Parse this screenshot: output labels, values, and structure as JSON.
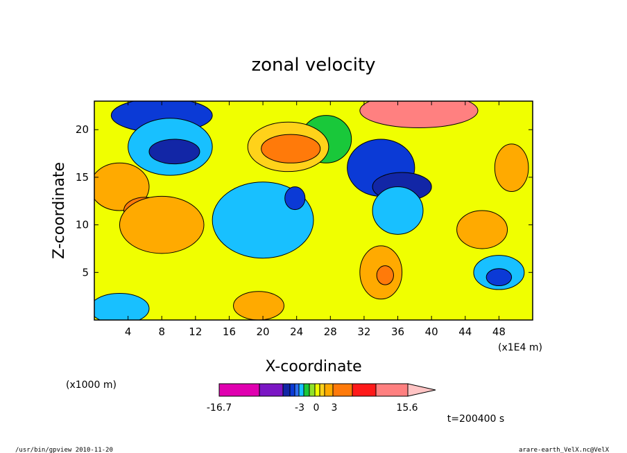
{
  "chart_data": {
    "type": "heatmap",
    "title": "zonal velocity",
    "xlabel": "X-coordinate",
    "ylabel": "Z-coordinate",
    "x_unit_left": "(x1000 m)",
    "x_unit_right": "(x1E4 m)",
    "xlim": [
      0,
      52
    ],
    "ylim": [
      0,
      23
    ],
    "x_ticks": [
      4,
      8,
      12,
      16,
      20,
      24,
      28,
      32,
      36,
      40,
      44,
      48
    ],
    "y_ticks": [
      5,
      10,
      15,
      20
    ],
    "colorbar": {
      "colors": [
        "#e000b0",
        "#7b16c4",
        "#1226a6",
        "#0b3ad6",
        "#2f6ff5",
        "#18c0ff",
        "#19c83a",
        "#8fe22a",
        "#f0ff00",
        "#ffd21a",
        "#ffaa00",
        "#ff7a0a",
        "#ff1a1a",
        "#ff8080",
        "#ffc4c4"
      ],
      "label_min": "-16.7",
      "label_neg": "-3",
      "label_zero": "0",
      "label_pos": "3",
      "label_max": "15.6",
      "min": -16.7,
      "max": 15.6
    },
    "regions": [
      {
        "v": -9,
        "cx": 8,
        "cy": 21.5,
        "rx": 6,
        "ry": 1.8
      },
      {
        "v": -5,
        "cx": 9,
        "cy": 18.2,
        "rx": 5,
        "ry": 3
      },
      {
        "v": -11,
        "cx": 9.5,
        "cy": 17.7,
        "rx": 3,
        "ry": 1.3
      },
      {
        "v": -3,
        "cx": 27.5,
        "cy": 19,
        "rx": 3,
        "ry": 2.5
      },
      {
        "v": -9,
        "cx": 34,
        "cy": 16,
        "rx": 4,
        "ry": 3
      },
      {
        "v": -11,
        "cx": 36.5,
        "cy": 14,
        "rx": 3.5,
        "ry": 1.5
      },
      {
        "v": -5,
        "cx": 36,
        "cy": 11.5,
        "rx": 3,
        "ry": 2.5
      },
      {
        "v": -5,
        "cx": 20,
        "cy": 10.5,
        "rx": 6,
        "ry": 4
      },
      {
        "v": -9,
        "cx": 23.8,
        "cy": 12.8,
        "rx": 1.2,
        "ry": 1.2
      },
      {
        "v": -5,
        "cx": 3,
        "cy": 1.2,
        "rx": 3.5,
        "ry": 1.6
      },
      {
        "v": -5,
        "cx": 48,
        "cy": 5,
        "rx": 3,
        "ry": 1.8
      },
      {
        "v": -9,
        "cx": 48,
        "cy": 4.5,
        "rx": 1.5,
        "ry": 0.9
      },
      {
        "v": 3,
        "cx": 23,
        "cy": 18.2,
        "rx": 4.8,
        "ry": 2.6
      },
      {
        "v": 8,
        "cx": 23.3,
        "cy": 18,
        "rx": 3.5,
        "ry": 1.5
      },
      {
        "v": 6,
        "cx": 3,
        "cy": 14,
        "rx": 3.5,
        "ry": 2.5
      },
      {
        "v": 8,
        "cx": 6,
        "cy": 11.5,
        "rx": 2.5,
        "ry": 1.4
      },
      {
        "v": 6,
        "cx": 8,
        "cy": 10,
        "rx": 5,
        "ry": 3
      },
      {
        "v": 12,
        "cx": 38.5,
        "cy": 22,
        "rx": 7,
        "ry": 1.8
      },
      {
        "v": 6,
        "cx": 49.5,
        "cy": 16,
        "rx": 2,
        "ry": 2.5
      },
      {
        "v": 6,
        "cx": 34,
        "cy": 5,
        "rx": 2.5,
        "ry": 2.8
      },
      {
        "v": 8,
        "cx": 34.5,
        "cy": 4.7,
        "rx": 1,
        "ry": 1
      },
      {
        "v": 6,
        "cx": 19.5,
        "cy": 1.5,
        "rx": 3,
        "ry": 1.5
      },
      {
        "v": 6,
        "cx": 46,
        "cy": 9.5,
        "rx": 3,
        "ry": 2
      }
    ],
    "t_label": "t=200400 s"
  },
  "footer": {
    "left": "/usr/bin/gpview   2010-11-20",
    "right": "arare-earth_VelX.nc@VelX"
  }
}
